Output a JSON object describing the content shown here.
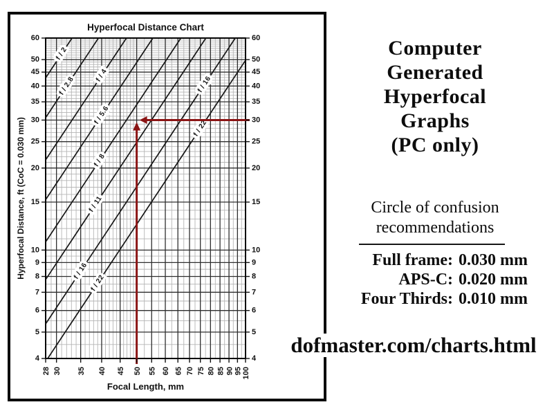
{
  "panel": {
    "title_lines": [
      "Computer",
      "Generated",
      "Hyperfocal",
      "Graphs",
      "(PC only)"
    ],
    "coc": {
      "heading_line1": "Circle of confusion",
      "heading_line2": "recommendations",
      "items": [
        {
          "label": "Full frame:",
          "value": "0.030 mm"
        },
        {
          "label": "APS-C:",
          "value": "0.020 mm"
        },
        {
          "label": "Four Thirds:",
          "value": "0.010 mm"
        }
      ]
    },
    "url": "dofmaster.com/charts.html"
  },
  "chart_data": {
    "type": "line",
    "title": "Hyperfocal Distance Chart",
    "xlabel": "Focal Length, mm",
    "ylabel": "Hyperfocal Distance, ft  (CoC = 0.030 mm)",
    "x_scale": "log",
    "y_scale": "log",
    "xlim": [
      28,
      100
    ],
    "ylim": [
      4,
      60
    ],
    "grid": true,
    "x_major_ticks": [
      28,
      30,
      35,
      40,
      45,
      50,
      55,
      60,
      65,
      70,
      75,
      80,
      85,
      90,
      95,
      100
    ],
    "x_minor_gridlines": [
      29,
      31,
      32,
      33,
      34,
      36,
      37,
      38,
      39,
      41,
      42,
      43,
      44,
      46,
      47,
      48,
      49,
      52.5,
      57.5,
      62.5,
      67.5,
      72.5,
      77.5,
      82.5,
      87.5,
      92.5,
      97.5
    ],
    "y_major_ticks": [
      4,
      5,
      6,
      7,
      8,
      9,
      10,
      15,
      20,
      25,
      30,
      35,
      40,
      45,
      50,
      60
    ],
    "y_minor_gridlines": [
      4.5,
      5.5,
      6.5,
      7.5,
      8.5,
      9.5,
      11,
      12,
      13,
      14,
      16,
      17,
      18,
      19,
      21,
      22,
      23,
      24,
      26,
      27,
      28,
      29,
      31,
      32,
      33,
      34,
      36,
      37,
      38,
      39,
      41,
      42,
      43,
      44,
      46,
      47,
      48,
      49,
      51,
      52,
      53,
      54,
      55,
      56,
      57,
      58,
      59
    ],
    "coc_mm": 0.03,
    "series": [
      {
        "name": "f / 2",
        "aperture": 2
      },
      {
        "name": "f / 2.8",
        "aperture": 2.8
      },
      {
        "name": "f / 4",
        "aperture": 4
      },
      {
        "name": "f / 5.6",
        "aperture": 5.6
      },
      {
        "name": "f / 8",
        "aperture": 8
      },
      {
        "name": "f / 11",
        "aperture": 11
      },
      {
        "name": "f / 16",
        "aperture": 16
      },
      {
        "name": "f / 22",
        "aperture": 22
      }
    ],
    "series_rule": "hyperfocal_ft = focal_mm^2 / (aperture * 0.030 * 304.8)",
    "line_labels": [
      {
        "text": "f / 2",
        "aperture": 2,
        "at_focal_mm": 31
      },
      {
        "text": "f / 2.8",
        "aperture": 2.8,
        "at_focal_mm": 32
      },
      {
        "text": "f / 4",
        "aperture": 4,
        "at_focal_mm": 40
      },
      {
        "text": "f / 5.6",
        "aperture": 5.6,
        "at_focal_mm": 40
      },
      {
        "text": "f / 8",
        "aperture": 8,
        "at_focal_mm": 39.5
      },
      {
        "text": "f / 11",
        "aperture": 11,
        "at_focal_mm": 38.5
      },
      {
        "text": "f / 16",
        "aperture": 16,
        "at_focal_mm": 35
      },
      {
        "text": "f / 22",
        "aperture": 22,
        "at_focal_mm": 39
      },
      {
        "text": "f / 16",
        "aperture": 16,
        "at_focal_mm": 77
      },
      {
        "text": "f / 22",
        "aperture": 22,
        "at_focal_mm": 75
      }
    ],
    "annotation_arrow": {
      "focal_mm": 50,
      "hyperfocal_ft": 30,
      "color": "#8b1414"
    },
    "colors": {
      "major_grid": "#2e2e2e",
      "minor_grid": "#b5b5b5",
      "line": "#161616",
      "frame": "#000000",
      "text": "#111111"
    }
  }
}
